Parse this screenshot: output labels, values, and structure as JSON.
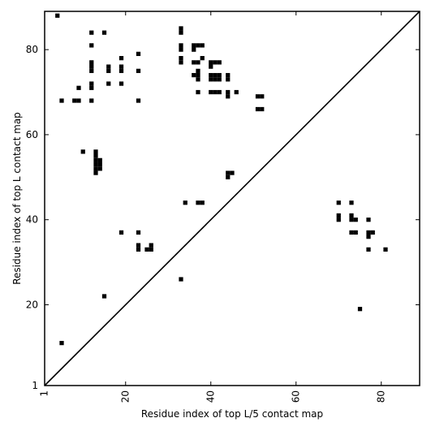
{
  "chart_data": {
    "type": "scatter",
    "xlabel": "Residue index of top L/5 contact map",
    "ylabel": "Residue index of top L contact map",
    "xlim": [
      1,
      89
    ],
    "ylim": [
      1,
      89
    ],
    "x_ticks": [
      1,
      20,
      40,
      60,
      80
    ],
    "y_ticks": [
      1,
      20,
      40,
      60,
      80
    ],
    "diagonal": true,
    "grid": false,
    "marker_color": "#000000",
    "series": [
      {
        "points": [
          [
            4,
            88
          ],
          [
            12,
            84
          ],
          [
            15,
            84
          ],
          [
            23,
            79
          ],
          [
            33,
            85
          ],
          [
            33,
            84
          ],
          [
            12,
            81
          ],
          [
            33,
            81
          ],
          [
            33,
            80
          ],
          [
            36,
            81
          ],
          [
            36,
            80
          ],
          [
            37,
            81
          ],
          [
            38,
            81
          ],
          [
            19,
            78
          ],
          [
            33,
            78
          ],
          [
            33,
            77
          ],
          [
            36,
            77
          ],
          [
            37,
            77
          ],
          [
            38,
            78
          ],
          [
            40,
            77
          ],
          [
            40,
            76
          ],
          [
            41,
            77
          ],
          [
            42,
            77
          ],
          [
            12,
            77
          ],
          [
            12,
            76
          ],
          [
            12,
            75
          ],
          [
            16,
            76
          ],
          [
            16,
            75
          ],
          [
            19,
            76
          ],
          [
            19,
            75
          ],
          [
            23,
            75
          ],
          [
            36,
            74
          ],
          [
            37,
            75
          ],
          [
            37,
            74
          ],
          [
            37,
            73
          ],
          [
            40,
            74
          ],
          [
            40,
            73
          ],
          [
            41,
            74
          ],
          [
            41,
            73
          ],
          [
            42,
            74
          ],
          [
            42,
            73
          ],
          [
            44,
            74
          ],
          [
            44,
            73
          ],
          [
            9,
            71
          ],
          [
            12,
            72
          ],
          [
            12,
            71
          ],
          [
            16,
            72
          ],
          [
            19,
            72
          ],
          [
            37,
            70
          ],
          [
            40,
            70
          ],
          [
            41,
            70
          ],
          [
            42,
            70
          ],
          [
            44,
            70
          ],
          [
            44,
            69
          ],
          [
            46,
            70
          ],
          [
            5,
            68
          ],
          [
            8,
            68
          ],
          [
            9,
            68
          ],
          [
            12,
            68
          ],
          [
            23,
            68
          ],
          [
            51,
            69
          ],
          [
            52,
            69
          ],
          [
            51,
            66
          ],
          [
            52,
            66
          ],
          [
            10,
            56
          ],
          [
            13,
            56
          ],
          [
            13,
            55
          ],
          [
            13,
            54
          ],
          [
            14,
            54
          ],
          [
            13,
            53
          ],
          [
            14,
            53
          ],
          [
            13,
            52
          ],
          [
            14,
            52
          ],
          [
            13,
            51
          ],
          [
            44,
            51
          ],
          [
            45,
            51
          ],
          [
            44,
            50
          ],
          [
            34,
            44
          ],
          [
            37,
            44
          ],
          [
            38,
            44
          ],
          [
            70,
            44
          ],
          [
            73,
            44
          ],
          [
            70,
            41
          ],
          [
            70,
            40
          ],
          [
            73,
            41
          ],
          [
            73,
            40
          ],
          [
            74,
            40
          ],
          [
            77,
            40
          ],
          [
            19,
            37
          ],
          [
            23,
            37
          ],
          [
            73,
            37
          ],
          [
            74,
            37
          ],
          [
            77,
            37
          ],
          [
            78,
            37
          ],
          [
            77,
            36
          ],
          [
            23,
            34
          ],
          [
            23,
            33
          ],
          [
            25,
            33
          ],
          [
            26,
            34
          ],
          [
            26,
            33
          ],
          [
            77,
            33
          ],
          [
            81,
            33
          ],
          [
            33,
            26
          ],
          [
            15,
            22
          ],
          [
            75,
            19
          ],
          [
            5,
            11
          ]
        ]
      }
    ]
  }
}
